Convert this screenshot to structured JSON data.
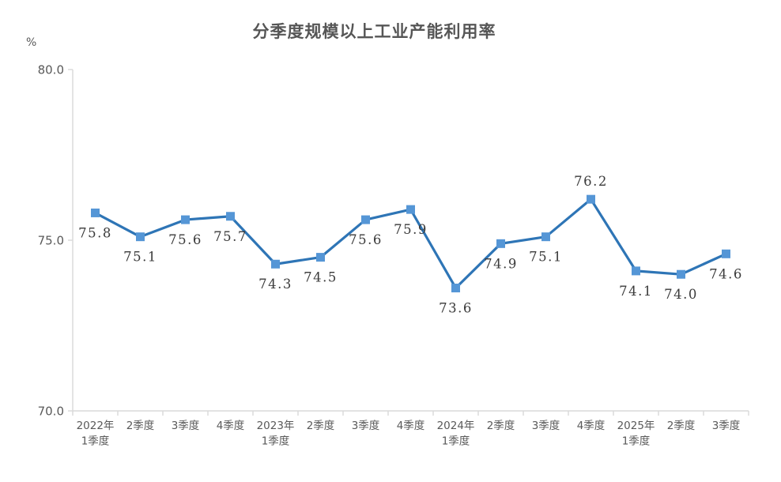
{
  "page": {
    "background": "#ffffff"
  },
  "chart_data": {
    "type": "line",
    "title": "分季度规模以上工业产能利用率",
    "unit_label": "%",
    "categories": [
      "2022年\n1季度",
      "2季度",
      "3季度",
      "4季度",
      "2023年\n1季度",
      "2季度",
      "3季度",
      "4季度",
      "2024年\n1季度",
      "2季度",
      "3季度",
      "4季度",
      "2025年\n1季度",
      "2季度",
      "3季度"
    ],
    "values": [
      75.8,
      75.1,
      75.6,
      75.7,
      74.3,
      74.5,
      75.6,
      75.9,
      73.6,
      74.9,
      75.1,
      76.2,
      74.1,
      74.0,
      74.6
    ],
    "data_labels": [
      "75.8",
      "75.1",
      "75.6",
      "75.7",
      "74.3",
      "74.5",
      "75.6",
      "75.9",
      "73.6",
      "74.9",
      "75.1",
      "76.2",
      "74.1",
      "74.0",
      "74.6"
    ],
    "label_above_index": 11,
    "ylim": [
      70.0,
      80.0
    ],
    "yticks": [
      {
        "value": 80.0,
        "label": "80.0"
      },
      {
        "value": 75.0,
        "label": "75.0"
      },
      {
        "value": 70.0,
        "label": "70.0"
      }
    ],
    "grid": false,
    "legend_position": "none",
    "colors": {
      "line": "#2E75B6",
      "marker_fill": "#5596D6",
      "axis": "#D9D9D9",
      "title_text": "#565656",
      "data_label_text": "#3A3A3A",
      "tick_text": "#595959"
    }
  }
}
